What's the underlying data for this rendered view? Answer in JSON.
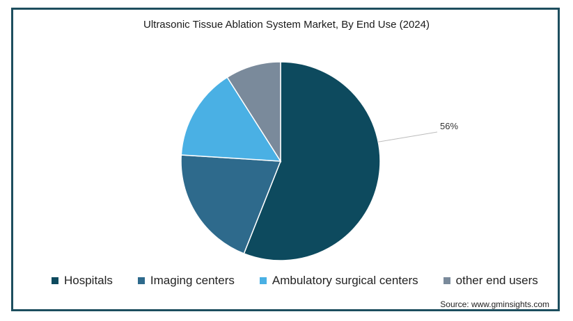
{
  "chart_data": {
    "type": "pie",
    "title": "Ultrasonic Tissue Ablation System Market, By End Use (2024)",
    "slices": [
      {
        "name": "Hospitals",
        "value": 56,
        "color": "#0d4a5e"
      },
      {
        "name": "Imaging centers",
        "value": 20,
        "color": "#2e6a8c"
      },
      {
        "name": "Ambulatory surgical centers",
        "value": 15,
        "color": "#4ab0e4"
      },
      {
        "name": "other end users",
        "value": 9,
        "color": "#7a8a9b"
      }
    ],
    "data_labels": [
      {
        "slice": "Hospitals",
        "text": "56%"
      }
    ],
    "legend_position": "bottom",
    "start_angle_deg": 0,
    "direction": "clockwise"
  },
  "source": "Source: www.gminsights.com"
}
